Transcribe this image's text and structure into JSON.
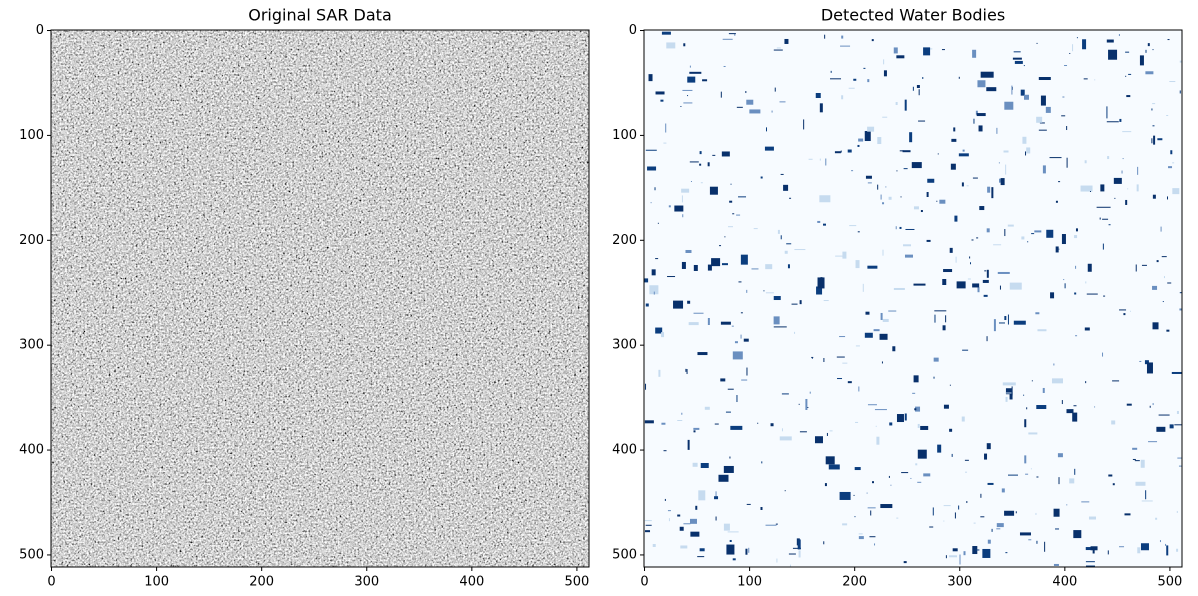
{
  "chart_data": [
    {
      "type": "image",
      "title": "Original SAR Data",
      "colormap": "gray",
      "xlim": [
        -0.5,
        511.5
      ],
      "ylim": [
        511.5,
        -0.5
      ],
      "xticks": [
        0,
        100,
        200,
        300,
        400,
        500
      ],
      "yticks": [
        0,
        100,
        200,
        300,
        400,
        500
      ]
    },
    {
      "type": "image",
      "title": "Detected Water Bodies",
      "colormap": "Blues",
      "xlim": [
        -0.5,
        511.5
      ],
      "ylim": [
        511.5,
        -0.5
      ],
      "xticks": [
        0,
        100,
        200,
        300,
        400,
        500
      ],
      "yticks": [
        0,
        100,
        200,
        300,
        400,
        500
      ]
    }
  ]
}
